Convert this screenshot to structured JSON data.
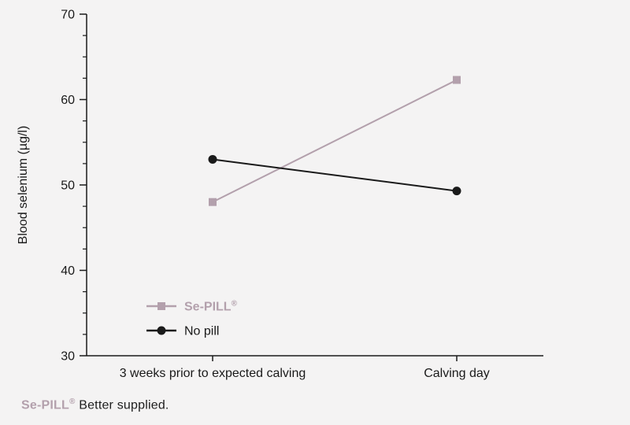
{
  "chart_data": {
    "type": "line",
    "categories": [
      "3 weeks prior to expected calving",
      "Calving day"
    ],
    "series": [
      {
        "name": "Se-PILL",
        "reg": "®",
        "values": [
          48,
          62.3
        ],
        "color": "#b3a0ac",
        "marker": "square",
        "bold": true
      },
      {
        "name": "No pill",
        "reg": "",
        "values": [
          53,
          49.3
        ],
        "color": "#1a1a1a",
        "marker": "circle",
        "bold": false
      }
    ],
    "title": "",
    "xlabel": "",
    "ylabel": "Blood selenium (µg/l)",
    "ylim": [
      30,
      70
    ],
    "yticks": [
      30,
      40,
      50,
      60,
      70
    ],
    "minor_tick_step": 2.5,
    "grid": false,
    "legend_position": "inside-bottom-left"
  },
  "footer": {
    "brand": "Se-PILL",
    "reg": "®",
    "text": "Better supplied."
  }
}
